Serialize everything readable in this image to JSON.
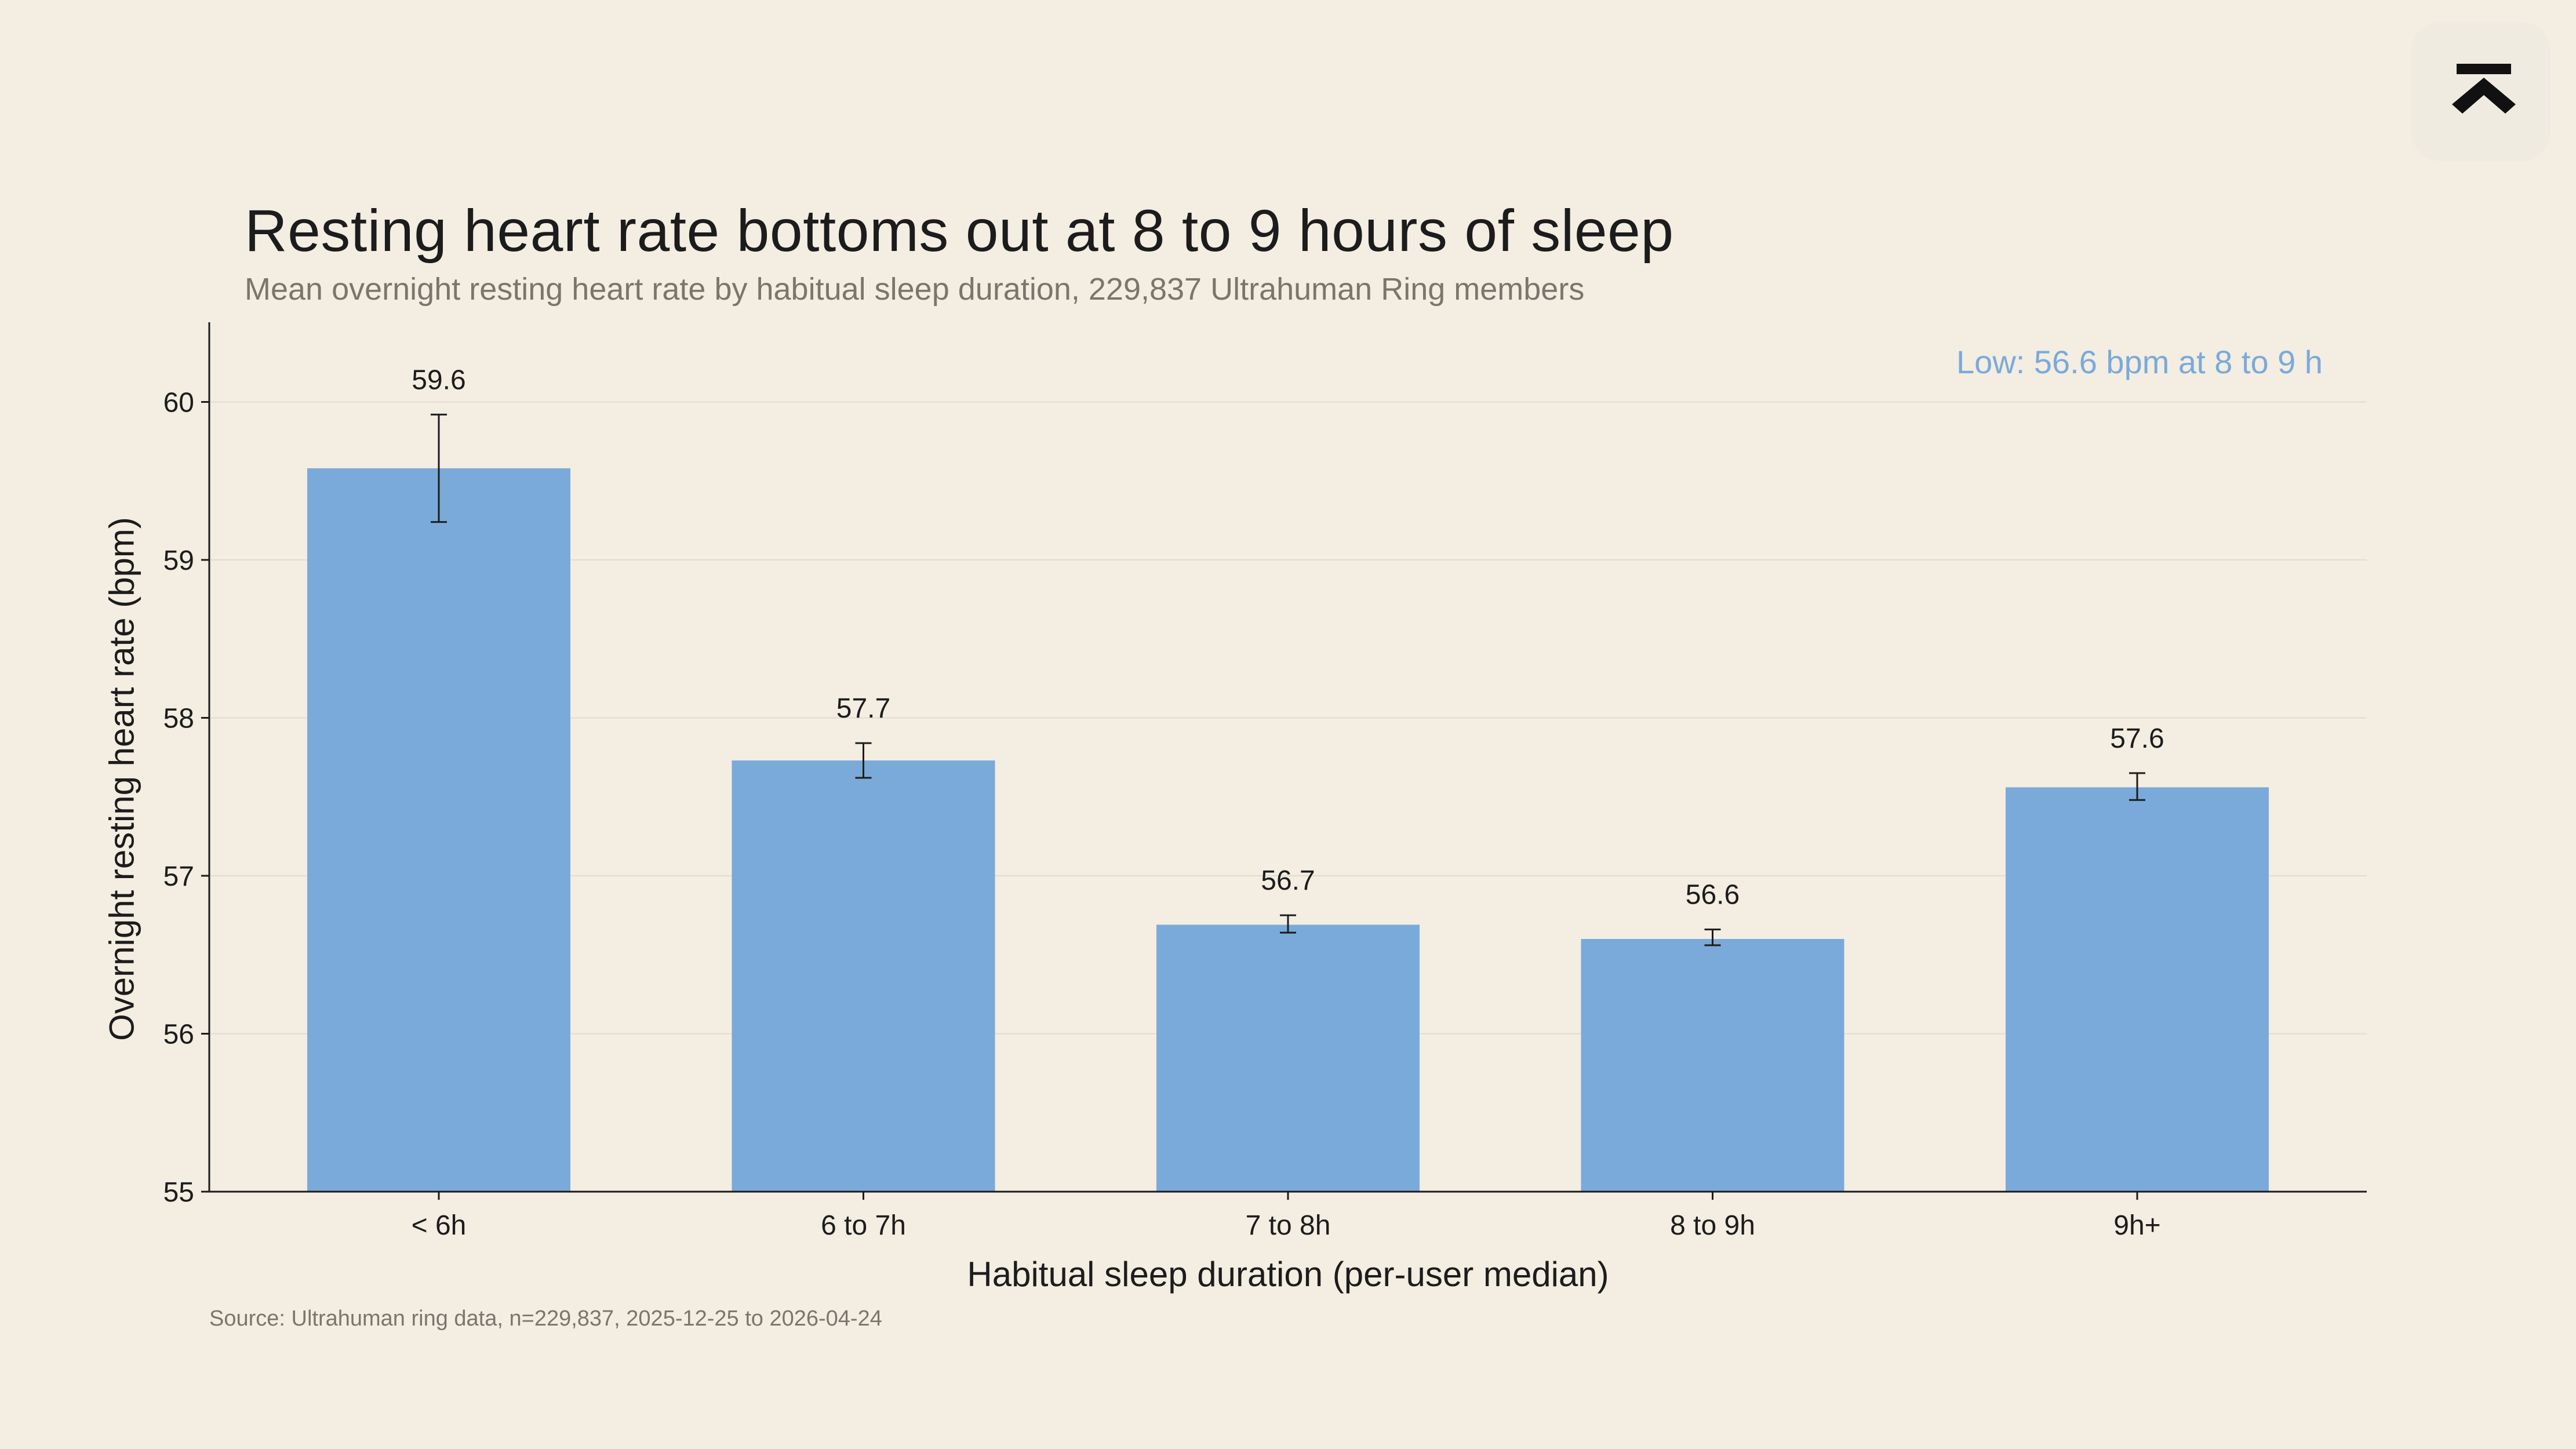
{
  "colors": {
    "background": "#f3ede2",
    "bar": "#7aaad9",
    "annotation": "#7aaad9",
    "axis": "#1c1c1c",
    "grid": "#e3dcd0",
    "muted_text": "#7d756c"
  },
  "brand": {
    "logo_icon": "ultrahuman-logo-icon"
  },
  "chart_data": {
    "type": "bar",
    "title": "Resting heart rate bottoms out at 8 to 9 hours of sleep",
    "subtitle": "Mean overnight resting heart rate by habitual sleep duration, 229,837 Ultrahuman Ring members",
    "xlabel": "Habitual sleep duration (per-user median)",
    "ylabel": "Overnight resting heart rate (bpm)",
    "categories": [
      "< 6h",
      "6 to 7h",
      "7 to 8h",
      "8 to 9h",
      "9h+"
    ],
    "values": [
      59.58,
      57.73,
      56.69,
      56.6,
      57.56
    ],
    "value_labels": [
      "59.6",
      "57.7",
      "56.7",
      "56.6",
      "57.6"
    ],
    "error_low": [
      59.24,
      57.62,
      56.64,
      56.56,
      57.48
    ],
    "error_high": [
      59.92,
      57.84,
      56.75,
      56.66,
      57.65
    ],
    "ylim": [
      55,
      60.5
    ],
    "yticks": [
      55,
      56,
      57,
      58,
      59,
      60
    ],
    "ytick_labels": [
      "55",
      "56",
      "57",
      "58",
      "59",
      "60"
    ],
    "grid": true,
    "annotation": "Low: 56.6 bpm at 8 to 9 h",
    "source": "Source: Ultrahuman ring data, n=229,837, 2025-12-25 to 2026-04-24"
  }
}
